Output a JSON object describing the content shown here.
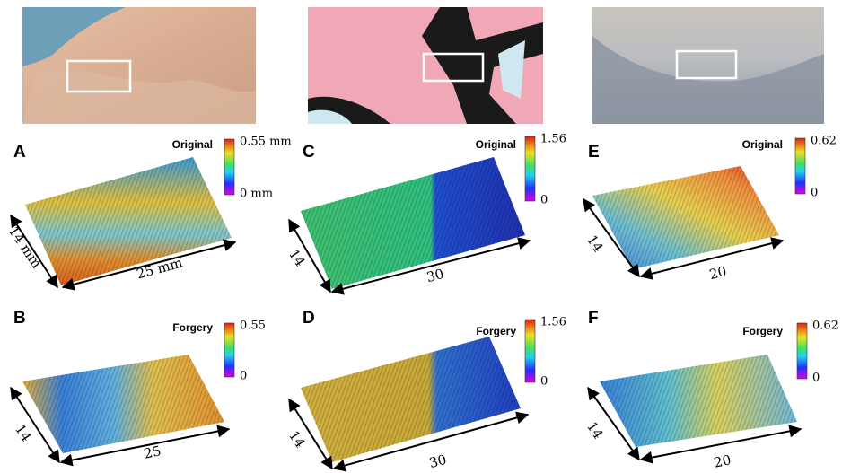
{
  "panels": [
    {
      "label": "A",
      "title": "Original",
      "colorbar": {
        "max": "0.55 mm",
        "min": "0 mm"
      },
      "depth_label": "14 mm",
      "width_label": "25 mm"
    },
    {
      "label": "B",
      "title": "Forgery",
      "colorbar": {
        "max": "0.55",
        "min": "0"
      },
      "depth_label": "14",
      "width_label": "25"
    },
    {
      "label": "C",
      "title": "Original",
      "colorbar": {
        "max": "1.56",
        "min": "0"
      },
      "depth_label": "14",
      "width_label": "30"
    },
    {
      "label": "D",
      "title": "Forgery",
      "colorbar": {
        "max": "1.56",
        "min": "0"
      },
      "depth_label": "14",
      "width_label": "30"
    },
    {
      "label": "E",
      "title": "Original",
      "colorbar": {
        "max": "0.62",
        "min": "0"
      },
      "depth_label": "14",
      "width_label": "20"
    },
    {
      "label": "F",
      "title": "Forgery",
      "colorbar": {
        "max": "0.62",
        "min": "0"
      },
      "depth_label": "14",
      "width_label": "20"
    }
  ]
}
